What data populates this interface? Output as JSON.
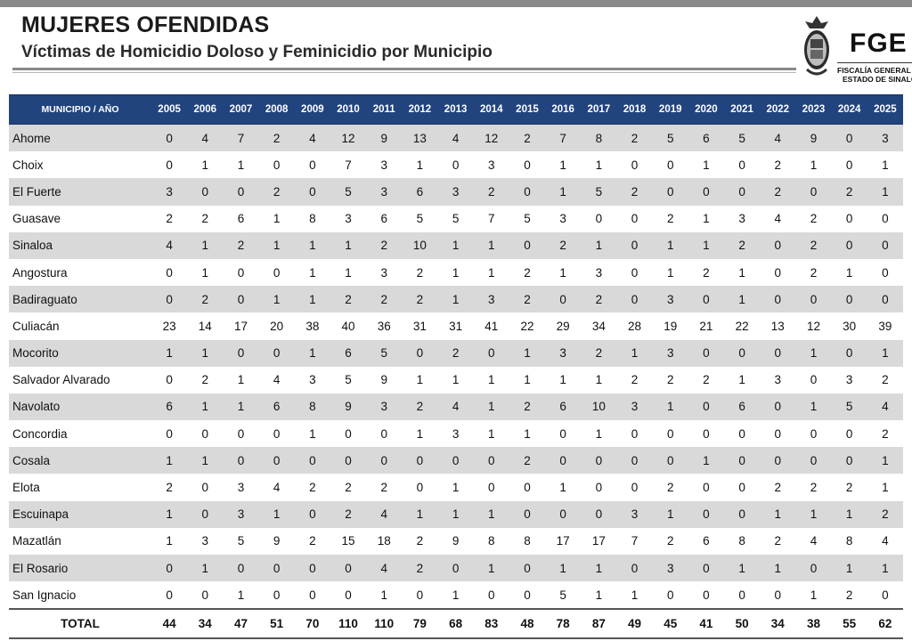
{
  "header": {
    "title": "MUJERES OFENDIDAS",
    "subtitle": "Víctimas de Homicidio Doloso y Feminicidio por Municipio"
  },
  "logo": {
    "text": "FGE",
    "line1": "FISCALÍA GENERAL DEL",
    "line2": "ESTADO DE SINALOA",
    "icon": "state-seal-icon"
  },
  "table": {
    "corner_label": "MUNICIPIO / AÑO",
    "years": [
      "2005",
      "2006",
      "2007",
      "2008",
      "2009",
      "2010",
      "2011",
      "2012",
      "2013",
      "2014",
      "2015",
      "2016",
      "2017",
      "2018",
      "2019",
      "2020",
      "2021",
      "2022",
      "2023",
      "2024",
      "2025"
    ],
    "rows": [
      {
        "name": "Ahome",
        "values": [
          "0",
          "4",
          "7",
          "2",
          "4",
          "12",
          "9",
          "13",
          "4",
          "12",
          "2",
          "7",
          "8",
          "2",
          "5",
          "6",
          "5",
          "4",
          "9",
          "0",
          "3"
        ]
      },
      {
        "name": "Choix",
        "values": [
          "0",
          "1",
          "1",
          "0",
          "0",
          "7",
          "3",
          "1",
          "0",
          "3",
          "0",
          "1",
          "1",
          "0",
          "0",
          "1",
          "0",
          "2",
          "1",
          "0",
          "1"
        ]
      },
      {
        "name": "El Fuerte",
        "values": [
          "3",
          "0",
          "0",
          "2",
          "0",
          "5",
          "3",
          "6",
          "3",
          "2",
          "0",
          "1",
          "5",
          "2",
          "0",
          "0",
          "0",
          "2",
          "0",
          "2",
          "1"
        ]
      },
      {
        "name": "Guasave",
        "values": [
          "2",
          "2",
          "6",
          "1",
          "8",
          "3",
          "6",
          "5",
          "5",
          "7",
          "5",
          "3",
          "0",
          "0",
          "2",
          "1",
          "3",
          "4",
          "2",
          "0",
          "0"
        ]
      },
      {
        "name": "Sinaloa",
        "values": [
          "4",
          "1",
          "2",
          "1",
          "1",
          "1",
          "2",
          "10",
          "1",
          "1",
          "0",
          "2",
          "1",
          "0",
          "1",
          "1",
          "2",
          "0",
          "2",
          "0",
          "0"
        ]
      },
      {
        "name": "Angostura",
        "values": [
          "0",
          "1",
          "0",
          "0",
          "1",
          "1",
          "3",
          "2",
          "1",
          "1",
          "2",
          "1",
          "3",
          "0",
          "1",
          "2",
          "1",
          "0",
          "2",
          "1",
          "0"
        ]
      },
      {
        "name": "Badiraguato",
        "values": [
          "0",
          "2",
          "0",
          "1",
          "1",
          "2",
          "2",
          "2",
          "1",
          "3",
          "2",
          "0",
          "2",
          "0",
          "3",
          "0",
          "1",
          "0",
          "0",
          "0",
          "0"
        ]
      },
      {
        "name": "Culiacán",
        "values": [
          "23",
          "14",
          "17",
          "20",
          "38",
          "40",
          "36",
          "31",
          "31",
          "41",
          "22",
          "29",
          "34",
          "28",
          "19",
          "21",
          "22",
          "13",
          "12",
          "30",
          "39"
        ]
      },
      {
        "name": "Mocorito",
        "values": [
          "1",
          "1",
          "0",
          "0",
          "1",
          "6",
          "5",
          "0",
          "2",
          "0",
          "1",
          "3",
          "2",
          "1",
          "3",
          "0",
          "0",
          "0",
          "1",
          "0",
          "1"
        ]
      },
      {
        "name": "Salvador  Alvarado",
        "values": [
          "0",
          "2",
          "1",
          "4",
          "3",
          "5",
          "9",
          "1",
          "1",
          "1",
          "1",
          "1",
          "1",
          "2",
          "2",
          "2",
          "1",
          "3",
          "0",
          "3",
          "2"
        ]
      },
      {
        "name": "Navolato",
        "values": [
          "6",
          "1",
          "1",
          "6",
          "8",
          "9",
          "3",
          "2",
          "4",
          "1",
          "2",
          "6",
          "10",
          "3",
          "1",
          "0",
          "6",
          "0",
          "1",
          "5",
          "4"
        ]
      },
      {
        "name": "Concordia",
        "values": [
          "0",
          "0",
          "0",
          "0",
          "1",
          "0",
          "0",
          "1",
          "3",
          "1",
          "1",
          "0",
          "1",
          "0",
          "0",
          "0",
          "0",
          "0",
          "0",
          "0",
          "2"
        ]
      },
      {
        "name": "Cosala",
        "values": [
          "1",
          "1",
          "0",
          "0",
          "0",
          "0",
          "0",
          "0",
          "0",
          "0",
          "2",
          "0",
          "0",
          "0",
          "0",
          "1",
          "0",
          "0",
          "0",
          "0",
          "1"
        ]
      },
      {
        "name": "Elota",
        "values": [
          "2",
          "0",
          "3",
          "4",
          "2",
          "2",
          "2",
          "0",
          "1",
          "0",
          "0",
          "1",
          "0",
          "0",
          "2",
          "0",
          "0",
          "2",
          "2",
          "2",
          "1"
        ]
      },
      {
        "name": "Escuinapa",
        "values": [
          "1",
          "0",
          "3",
          "1",
          "0",
          "2",
          "4",
          "1",
          "1",
          "1",
          "0",
          "0",
          "0",
          "3",
          "1",
          "0",
          "0",
          "1",
          "1",
          "1",
          "2"
        ]
      },
      {
        "name": "Mazatlán",
        "values": [
          "1",
          "3",
          "5",
          "9",
          "2",
          "15",
          "18",
          "2",
          "9",
          "8",
          "8",
          "17",
          "17",
          "7",
          "2",
          "6",
          "8",
          "2",
          "4",
          "8",
          "4"
        ]
      },
      {
        "name": "El Rosario",
        "values": [
          "0",
          "1",
          "0",
          "0",
          "0",
          "0",
          "4",
          "2",
          "0",
          "1",
          "0",
          "1",
          "1",
          "0",
          "3",
          "0",
          "1",
          "1",
          "0",
          "1",
          "1"
        ]
      },
      {
        "name": "San Ignacio",
        "values": [
          "0",
          "0",
          "1",
          "0",
          "0",
          "0",
          "1",
          "0",
          "1",
          "0",
          "0",
          "5",
          "1",
          "1",
          "0",
          "0",
          "0",
          "0",
          "1",
          "2",
          "0"
        ]
      }
    ],
    "total": {
      "name": "TOTAL",
      "values": [
        "44",
        "34",
        "47",
        "51",
        "70",
        "110",
        "110",
        "79",
        "68",
        "83",
        "48",
        "78",
        "87",
        "49",
        "45",
        "41",
        "50",
        "34",
        "38",
        "55",
        "62"
      ]
    }
  },
  "colors": {
    "header_band": "#21447e",
    "row_shade": "#d9d9d9",
    "rule_gray": "#8a8a8a"
  }
}
